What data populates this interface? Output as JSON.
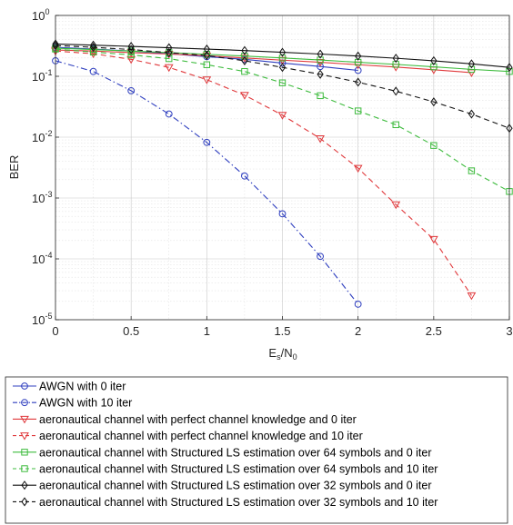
{
  "chart_data": {
    "type": "line",
    "xlabel": {
      "base": "E",
      "sub1": "s",
      "slash": "/N",
      "sub2": "0"
    },
    "ylabel": "BER",
    "xlim": [
      0,
      3
    ],
    "ylim": [
      1e-05,
      1
    ],
    "yscale": "log",
    "grid": true,
    "minor_grid": true,
    "legend_position": "below",
    "x_ticks": [
      "0",
      "0.5",
      "1",
      "1.5",
      "2",
      "2.5",
      "3"
    ],
    "y_ticks": [
      {
        "base": "10",
        "exp": "0"
      },
      {
        "base": "10",
        "exp": "-1"
      },
      {
        "base": "10",
        "exp": "-2"
      },
      {
        "base": "10",
        "exp": "-3"
      },
      {
        "base": "10",
        "exp": "-4"
      },
      {
        "base": "10",
        "exp": "-5"
      }
    ],
    "series": [
      {
        "name": "AWGN with 0 iter",
        "color": "#2f3fbf",
        "marker": "circle",
        "dash": "solid",
        "x": [
          0,
          0.25,
          0.5,
          0.75,
          1,
          1.25,
          1.5,
          1.75,
          2
        ],
        "y": [
          0.3,
          0.28,
          0.26,
          0.235,
          0.21,
          0.19,
          0.165,
          0.145,
          0.125
        ]
      },
      {
        "name": "AWGN with 10 iter",
        "color": "#2f3fbf",
        "marker": "circle",
        "dash": "dashdot",
        "x": [
          0,
          0.25,
          0.5,
          0.75,
          1,
          1.25,
          1.5,
          1.75,
          2
        ],
        "y": [
          0.18,
          0.12,
          0.058,
          0.024,
          0.0082,
          0.0023,
          0.00055,
          0.00011,
          1.8e-05
        ]
      },
      {
        "name": "aeronautical channel with perfect channel knowledge and 0 iter",
        "color": "#e0383b",
        "marker": "triangle-down",
        "dash": "solid",
        "x": [
          0,
          0.25,
          0.5,
          0.75,
          1,
          1.25,
          1.5,
          1.75,
          2,
          2.25,
          2.5,
          2.75
        ],
        "y": [
          0.27,
          0.26,
          0.245,
          0.232,
          0.218,
          0.2,
          0.184,
          0.17,
          0.155,
          0.142,
          0.128,
          0.115
        ]
      },
      {
        "name": "aeronautical channel with perfect channel knowledge and 10 iter",
        "color": "#e0383b",
        "marker": "triangle-down",
        "dash": "dashed",
        "x": [
          0,
          0.25,
          0.5,
          0.75,
          1,
          1.25,
          1.5,
          1.75,
          2,
          2.25,
          2.5,
          2.75
        ],
        "y": [
          0.26,
          0.235,
          0.19,
          0.14,
          0.088,
          0.049,
          0.023,
          0.0095,
          0.0031,
          0.00078,
          0.00021,
          2.5e-05
        ]
      },
      {
        "name": "aeronautical channel with Structured LS estimation over 64 symbols and 0 iter",
        "color": "#3dbb3d",
        "marker": "square",
        "dash": "solid",
        "x": [
          0,
          0.25,
          0.5,
          0.75,
          1,
          1.25,
          1.5,
          1.75,
          2,
          2.25,
          2.5,
          2.75,
          3
        ],
        "y": [
          0.29,
          0.275,
          0.26,
          0.245,
          0.23,
          0.215,
          0.2,
          0.185,
          0.17,
          0.157,
          0.143,
          0.13,
          0.12
        ]
      },
      {
        "name": "aeronautical channel with Structured LS estimation over 64 symbols and 10 iter",
        "color": "#3dbb3d",
        "marker": "square",
        "dash": "dashed",
        "x": [
          0,
          0.25,
          0.5,
          0.75,
          1,
          1.25,
          1.5,
          1.75,
          2,
          2.25,
          2.5,
          2.75,
          3
        ],
        "y": [
          0.28,
          0.25,
          0.225,
          0.195,
          0.155,
          0.12,
          0.078,
          0.048,
          0.027,
          0.016,
          0.0073,
          0.0028,
          0.00128
        ]
      },
      {
        "name": "aeronautical channel with Structured LS estimation over 32 symbols and 0 iter",
        "color": "#111111",
        "marker": "diamond",
        "dash": "solid",
        "x": [
          0,
          0.25,
          0.5,
          0.75,
          1,
          1.25,
          1.5,
          1.75,
          2,
          2.25,
          2.5,
          2.75,
          3
        ],
        "y": [
          0.34,
          0.325,
          0.31,
          0.295,
          0.28,
          0.265,
          0.248,
          0.232,
          0.215,
          0.198,
          0.18,
          0.16,
          0.14
        ]
      },
      {
        "name": "aeronautical channel with Structured LS estimation over 32 symbols and 10 iter",
        "color": "#111111",
        "marker": "diamond",
        "dash": "dashed",
        "x": [
          0,
          0.25,
          0.5,
          0.75,
          1,
          1.25,
          1.5,
          1.75,
          2,
          2.25,
          2.5,
          2.75,
          3
        ],
        "y": [
          0.32,
          0.3,
          0.275,
          0.245,
          0.22,
          0.18,
          0.14,
          0.108,
          0.08,
          0.057,
          0.038,
          0.024,
          0.014
        ]
      }
    ]
  }
}
